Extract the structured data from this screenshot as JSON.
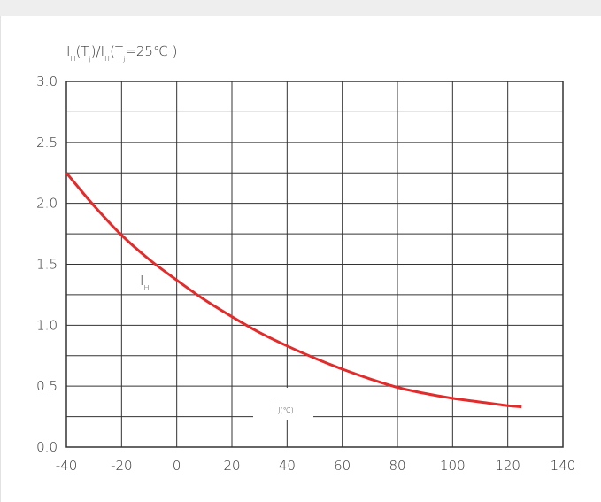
{
  "chart_data": {
    "type": "line",
    "ylabel": {
      "parts": [
        "I",
        "H",
        "(T",
        "j",
        ")/I",
        "H",
        "(T",
        "j",
        "=25℃ )"
      ]
    },
    "xlabel": {
      "main": "T",
      "sub": "J(℃)"
    },
    "curve_label": {
      "main": "I",
      "sub": "H"
    },
    "xlim": [
      -40,
      140
    ],
    "ylim": [
      0,
      3
    ],
    "x_ticks": [
      -40,
      -20,
      0,
      20,
      40,
      60,
      80,
      100,
      120,
      140
    ],
    "y_ticks": [
      "0.0",
      "0.5",
      "1.0",
      "1.5",
      "2.0",
      "2.5",
      "3.0"
    ],
    "y_tick_values": [
      0,
      0.5,
      1.0,
      1.5,
      2.0,
      2.5,
      3.0
    ],
    "y_minor_grid": [
      0.25,
      0.75,
      1.25,
      1.75,
      2.25,
      2.75
    ],
    "grid": true,
    "series": [
      {
        "color": "#e32b2b",
        "x": [
          -40,
          -30,
          -20,
          -10,
          0,
          10,
          20,
          30,
          40,
          50,
          60,
          70,
          80,
          90,
          100,
          110,
          120,
          125
        ],
        "y": [
          2.25,
          1.98,
          1.74,
          1.54,
          1.37,
          1.21,
          1.07,
          0.94,
          0.83,
          0.73,
          0.64,
          0.56,
          0.49,
          0.44,
          0.4,
          0.37,
          0.34,
          0.33
        ]
      }
    ]
  }
}
